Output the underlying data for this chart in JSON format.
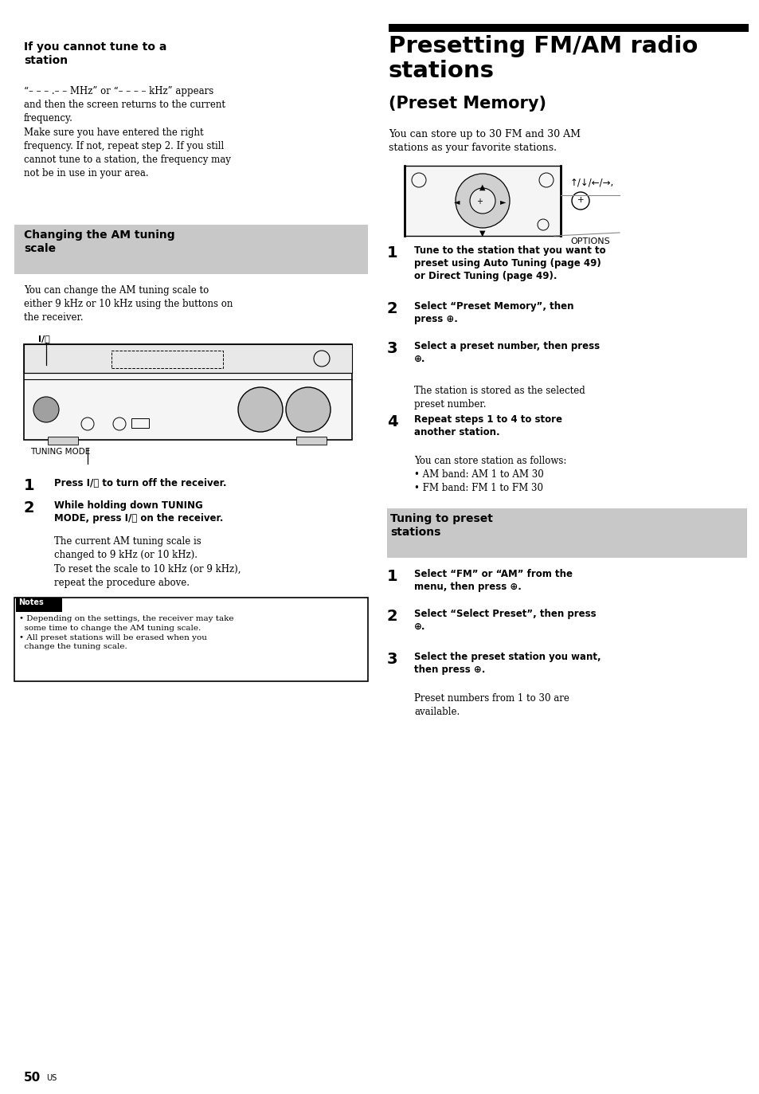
{
  "bg_color": "#ffffff",
  "page_num": "50",
  "page_suffix": "US",
  "sec1_title": "If you cannot tune to a\nstation",
  "sec1_body1": "“– – – .– – MHz” or “– – – – kHz” appears",
  "sec1_body2": "and then the screen returns to the current\nfrequency.\nMake sure you have entered the right\nfrequency. If not, repeat step 2. If you still\ncannot tune to a station, the frequency may\nnot be in use in your area.",
  "sec2_title": "Changing the AM tuning\nscale",
  "sec2_body": "You can change the AM tuning scale to\neither 9 kHz or 10 kHz using the\nthe receiver.",
  "label_io": "I/⏽",
  "label_tuning_mode": "TUNING MODE",
  "step1_left": "Press I/⏽ to turn off the receiver.",
  "step2_left_bold": "While holding down TUNING\nMODE, press I/⏽ on the receiver.",
  "step2_left_body": "The current AM tuning scale is\nchanged to 9 kHz (or 10 kHz).\nTo reset the scale to 10 kHz (or 9 kHz),\nrepeat the procedure above.",
  "notes_title": "Notes",
  "notes_body": "• Depending on the settings, the receiver may take\n  some time to change the AM tuning scale.\n• All preset stations will be erased when you\n  change the tuning scale.",
  "right_bar_color": "#000000",
  "right_main_title1": "Presetting FM/AM radio",
  "right_main_title2": "stations",
  "right_sub_title": "(Preset Memory)",
  "right_intro": "You can store up to 30 FM and 30 AM\nstations as your favorite stations.",
  "arrow_label": "↑/↓/←/→,",
  "plus_label": "⊕",
  "options_label": "OPTIONS",
  "rs1_bold": "Tune to the station that you want to\npreset using Auto Tuning (page 49)\nor Direct Tuning (page 49).",
  "rs2_bold": "Select “Preset Memory”, then\npress ⊕.",
  "rs3_bold": "Select a preset number, then press\n⊕.",
  "rs3_body": "The station is stored as the selected\npreset number.",
  "rs4_bold": "Repeat steps 1 to 4 to store\nanother station.",
  "rs4_body": "You can store station as follows:\n• AM band: AM 1 to AM 30\n• FM band: FM 1 to FM 30",
  "sec3_title": "Tuning to preset\nstations",
  "rb1_bold": "Select “FM” or “AM” from the\nmenu, then press ⊕.",
  "rb2_bold": "Select “Select Preset”, then press\n⊕.",
  "rb3_bold": "Select the preset station you want,\nthen press ⊕.",
  "rb3_body": "Preset numbers from 1 to 30 are\navailable.",
  "gray_color": "#c8c8c8"
}
